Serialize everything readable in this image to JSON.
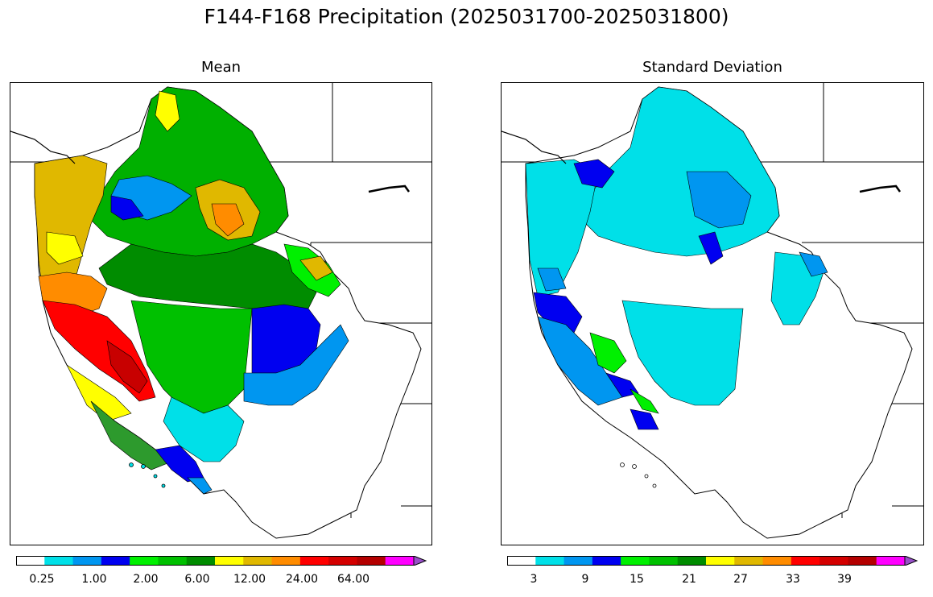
{
  "figure": {
    "title": "F144-F168 Precipitation (2025031700-2025031800)"
  },
  "panels": [
    {
      "title": "Mean",
      "colorbar": {
        "colors": [
          "#ffffff",
          "#00e0e8",
          "#0096f0",
          "#0000f0",
          "#00f000",
          "#00c000",
          "#008c00",
          "#ffff00",
          "#e0b800",
          "#ff8c00",
          "#ff0000",
          "#d40000",
          "#b40000",
          "#ff00ff",
          "#9850c8"
        ],
        "tick_labels": [
          "0.25",
          "1.00",
          "2.00",
          "6.00",
          "12.00",
          "24.00",
          "64.00"
        ],
        "extend": "max"
      }
    },
    {
      "title": "Standard Deviation",
      "colorbar": {
        "colors": [
          "#ffffff",
          "#00e0e8",
          "#0096f0",
          "#0000f0",
          "#00f000",
          "#00c000",
          "#008c00",
          "#ffff00",
          "#e0b800",
          "#ff8c00",
          "#ff0000",
          "#d40000",
          "#b40000",
          "#ff00ff",
          "#9850c8"
        ],
        "tick_labels": [
          "3",
          "9",
          "15",
          "21",
          "27",
          "33",
          "39"
        ],
        "extend": "max"
      }
    }
  ]
}
